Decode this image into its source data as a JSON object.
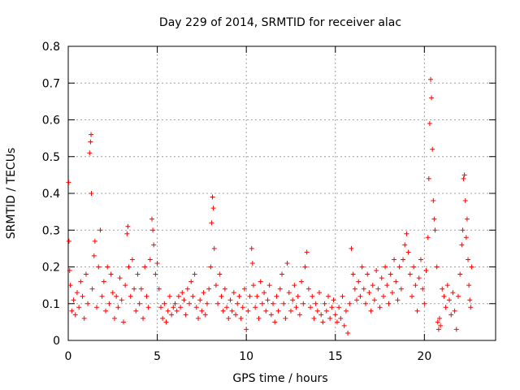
{
  "chart_data": {
    "type": "scatter",
    "title": "Day 229 of 2014, SRMTID for receiver alac",
    "xlabel": "GPS time / hours",
    "ylabel": "SRMTID / TECUs",
    "xlim": [
      0,
      24
    ],
    "ylim": [
      0,
      0.8
    ],
    "xticks": [
      0,
      5,
      10,
      15,
      20
    ],
    "xtick_labels": [
      "0",
      "5",
      "10",
      "15",
      "20"
    ],
    "yticks": [
      0,
      0.1,
      0.2,
      0.3,
      0.4,
      0.5,
      0.6,
      0.7,
      0.8
    ],
    "ytick_labels": [
      "0",
      "0.1",
      "0.2",
      "0.3",
      "0.4",
      "0.5",
      "0.6",
      "0.7",
      "0.8"
    ],
    "grid": true,
    "marker": "+",
    "marker_color": "#ff0000",
    "series": [
      {
        "name": "SRMTID",
        "points": [
          [
            0.02,
            0.43
          ],
          [
            0.04,
            0.27
          ],
          [
            0.08,
            0.19
          ],
          [
            0.12,
            0.15
          ],
          [
            0.2,
            0.08
          ],
          [
            0.3,
            0.11
          ],
          [
            0.4,
            0.07
          ],
          [
            0.5,
            0.13
          ],
          [
            0.6,
            0.09
          ],
          [
            0.7,
            0.16
          ],
          [
            0.8,
            0.12
          ],
          [
            0.9,
            0.06
          ],
          [
            1.0,
            0.18
          ],
          [
            1.1,
            0.1
          ],
          [
            1.2,
            0.51
          ],
          [
            1.25,
            0.54
          ],
          [
            1.28,
            0.56
          ],
          [
            1.3,
            0.4
          ],
          [
            1.35,
            0.14
          ],
          [
            1.45,
            0.23
          ],
          [
            1.5,
            0.27
          ],
          [
            1.6,
            0.09
          ],
          [
            1.7,
            0.2
          ],
          [
            1.8,
            0.3
          ],
          [
            1.9,
            0.12
          ],
          [
            2.0,
            0.16
          ],
          [
            2.1,
            0.08
          ],
          [
            2.2,
            0.2
          ],
          [
            2.3,
            0.1
          ],
          [
            2.4,
            0.18
          ],
          [
            2.5,
            0.13
          ],
          [
            2.6,
            0.06
          ],
          [
            2.7,
            0.12
          ],
          [
            2.8,
            0.09
          ],
          [
            2.9,
            0.17
          ],
          [
            3.0,
            0.11
          ],
          [
            3.1,
            0.05
          ],
          [
            3.2,
            0.15
          ],
          [
            3.3,
            0.29
          ],
          [
            3.35,
            0.31
          ],
          [
            3.4,
            0.2
          ],
          [
            3.5,
            0.12
          ],
          [
            3.6,
            0.22
          ],
          [
            3.7,
            0.14
          ],
          [
            3.8,
            0.08
          ],
          [
            3.9,
            0.18
          ],
          [
            4.0,
            0.1
          ],
          [
            4.1,
            0.14
          ],
          [
            4.2,
            0.06
          ],
          [
            4.3,
            0.2
          ],
          [
            4.4,
            0.12
          ],
          [
            4.5,
            0.09
          ],
          [
            4.6,
            0.22
          ],
          [
            4.7,
            0.33
          ],
          [
            4.75,
            0.3
          ],
          [
            4.8,
            0.26
          ],
          [
            4.9,
            0.18
          ],
          [
            5.0,
            0.21
          ],
          [
            5.1,
            0.14
          ],
          [
            5.2,
            0.09
          ],
          [
            5.3,
            0.06
          ],
          [
            5.4,
            0.1
          ],
          [
            5.5,
            0.05
          ],
          [
            5.6,
            0.08
          ],
          [
            5.7,
            0.12
          ],
          [
            5.8,
            0.07
          ],
          [
            5.9,
            0.09
          ],
          [
            6.0,
            0.1
          ],
          [
            6.1,
            0.08
          ],
          [
            6.2,
            0.12
          ],
          [
            6.3,
            0.09
          ],
          [
            6.4,
            0.13
          ],
          [
            6.5,
            0.11
          ],
          [
            6.6,
            0.07
          ],
          [
            6.7,
            0.14
          ],
          [
            6.8,
            0.1
          ],
          [
            6.9,
            0.16
          ],
          [
            7.0,
            0.12
          ],
          [
            7.1,
            0.18
          ],
          [
            7.2,
            0.09
          ],
          [
            7.3,
            0.06
          ],
          [
            7.4,
            0.11
          ],
          [
            7.5,
            0.08
          ],
          [
            7.6,
            0.13
          ],
          [
            7.7,
            0.07
          ],
          [
            7.8,
            0.1
          ],
          [
            7.9,
            0.14
          ],
          [
            8.0,
            0.2
          ],
          [
            8.05,
            0.32
          ],
          [
            8.1,
            0.39
          ],
          [
            8.15,
            0.36
          ],
          [
            8.2,
            0.25
          ],
          [
            8.3,
            0.15
          ],
          [
            8.4,
            0.1
          ],
          [
            8.5,
            0.18
          ],
          [
            8.6,
            0.12
          ],
          [
            8.7,
            0.08
          ],
          [
            8.8,
            0.14
          ],
          [
            8.9,
            0.09
          ],
          [
            9.0,
            0.06
          ],
          [
            9.1,
            0.11
          ],
          [
            9.2,
            0.08
          ],
          [
            9.3,
            0.13
          ],
          [
            9.4,
            0.07
          ],
          [
            9.5,
            0.1
          ],
          [
            9.6,
            0.12
          ],
          [
            9.7,
            0.06
          ],
          [
            9.8,
            0.09
          ],
          [
            9.9,
            0.14
          ],
          [
            10.0,
            0.03
          ],
          [
            10.1,
            0.08
          ],
          [
            10.2,
            0.12
          ],
          [
            10.3,
            0.25
          ],
          [
            10.35,
            0.21
          ],
          [
            10.4,
            0.15
          ],
          [
            10.5,
            0.09
          ],
          [
            10.6,
            0.12
          ],
          [
            10.7,
            0.06
          ],
          [
            10.8,
            0.16
          ],
          [
            10.9,
            0.1
          ],
          [
            11.0,
            0.13
          ],
          [
            11.1,
            0.08
          ],
          [
            11.2,
            0.11
          ],
          [
            11.3,
            0.15
          ],
          [
            11.4,
            0.07
          ],
          [
            11.5,
            0.1
          ],
          [
            11.6,
            0.05
          ],
          [
            11.7,
            0.12
          ],
          [
            11.8,
            0.08
          ],
          [
            11.9,
            0.14
          ],
          [
            12.0,
            0.18
          ],
          [
            12.1,
            0.1
          ],
          [
            12.2,
            0.06
          ],
          [
            12.3,
            0.21
          ],
          [
            12.4,
            0.13
          ],
          [
            12.5,
            0.08
          ],
          [
            12.6,
            0.11
          ],
          [
            12.7,
            0.15
          ],
          [
            12.8,
            0.09
          ],
          [
            12.9,
            0.12
          ],
          [
            13.0,
            0.07
          ],
          [
            13.1,
            0.16
          ],
          [
            13.2,
            0.1
          ],
          [
            13.3,
            0.2
          ],
          [
            13.4,
            0.24
          ],
          [
            13.5,
            0.14
          ],
          [
            13.6,
            0.09
          ],
          [
            13.7,
            0.12
          ],
          [
            13.8,
            0.06
          ],
          [
            13.9,
            0.1
          ],
          [
            14.0,
            0.08
          ],
          [
            14.1,
            0.13
          ],
          [
            14.2,
            0.07
          ],
          [
            14.3,
            0.05
          ],
          [
            14.4,
            0.1
          ],
          [
            14.5,
            0.08
          ],
          [
            14.6,
            0.12
          ],
          [
            14.7,
            0.06
          ],
          [
            14.8,
            0.09
          ],
          [
            14.9,
            0.11
          ],
          [
            15.0,
            0.07
          ],
          [
            15.1,
            0.05
          ],
          [
            15.2,
            0.09
          ],
          [
            15.3,
            0.06
          ],
          [
            15.4,
            0.12
          ],
          [
            15.5,
            0.04
          ],
          [
            15.6,
            0.08
          ],
          [
            15.7,
            0.02
          ],
          [
            15.8,
            0.1
          ],
          [
            15.9,
            0.25
          ],
          [
            16.0,
            0.18
          ],
          [
            16.1,
            0.14
          ],
          [
            16.2,
            0.11
          ],
          [
            16.3,
            0.16
          ],
          [
            16.4,
            0.12
          ],
          [
            16.5,
            0.2
          ],
          [
            16.6,
            0.14
          ],
          [
            16.7,
            0.1
          ],
          [
            16.8,
            0.18
          ],
          [
            16.9,
            0.13
          ],
          [
            17.0,
            0.08
          ],
          [
            17.1,
            0.15
          ],
          [
            17.2,
            0.11
          ],
          [
            17.3,
            0.19
          ],
          [
            17.4,
            0.14
          ],
          [
            17.5,
            0.09
          ],
          [
            17.6,
            0.17
          ],
          [
            17.7,
            0.12
          ],
          [
            17.8,
            0.2
          ],
          [
            17.9,
            0.15
          ],
          [
            18.0,
            0.1
          ],
          [
            18.1,
            0.18
          ],
          [
            18.2,
            0.13
          ],
          [
            18.3,
            0.22
          ],
          [
            18.4,
            0.16
          ],
          [
            18.5,
            0.11
          ],
          [
            18.6,
            0.2
          ],
          [
            18.7,
            0.14
          ],
          [
            18.8,
            0.22
          ],
          [
            18.9,
            0.26
          ],
          [
            19.0,
            0.29
          ],
          [
            19.1,
            0.24
          ],
          [
            19.2,
            0.18
          ],
          [
            19.3,
            0.12
          ],
          [
            19.4,
            0.2
          ],
          [
            19.5,
            0.15
          ],
          [
            19.6,
            0.08
          ],
          [
            19.7,
            0.17
          ],
          [
            19.8,
            0.22
          ],
          [
            19.9,
            0.14
          ],
          [
            20.0,
            0.1
          ],
          [
            20.1,
            0.19
          ],
          [
            20.2,
            0.28
          ],
          [
            20.25,
            0.44
          ],
          [
            20.3,
            0.59
          ],
          [
            20.35,
            0.71
          ],
          [
            20.4,
            0.66
          ],
          [
            20.45,
            0.52
          ],
          [
            20.5,
            0.38
          ],
          [
            20.55,
            0.33
          ],
          [
            20.6,
            0.3
          ],
          [
            20.7,
            0.2
          ],
          [
            20.75,
            0.05
          ],
          [
            20.8,
            0.03
          ],
          [
            20.85,
            0.06
          ],
          [
            20.9,
            0.04
          ],
          [
            21.0,
            0.14
          ],
          [
            21.1,
            0.12
          ],
          [
            21.2,
            0.09
          ],
          [
            21.3,
            0.15
          ],
          [
            21.4,
            0.11
          ],
          [
            21.5,
            0.07
          ],
          [
            21.6,
            0.13
          ],
          [
            21.7,
            0.08
          ],
          [
            21.8,
            0.03
          ],
          [
            21.9,
            0.12
          ],
          [
            22.0,
            0.18
          ],
          [
            22.1,
            0.26
          ],
          [
            22.15,
            0.3
          ],
          [
            22.2,
            0.44
          ],
          [
            22.25,
            0.45
          ],
          [
            22.3,
            0.38
          ],
          [
            22.35,
            0.28
          ],
          [
            22.4,
            0.33
          ],
          [
            22.45,
            0.22
          ],
          [
            22.5,
            0.15
          ],
          [
            22.55,
            0.11
          ],
          [
            22.6,
            0.09
          ],
          [
            22.65,
            0.2
          ]
        ]
      }
    ]
  }
}
